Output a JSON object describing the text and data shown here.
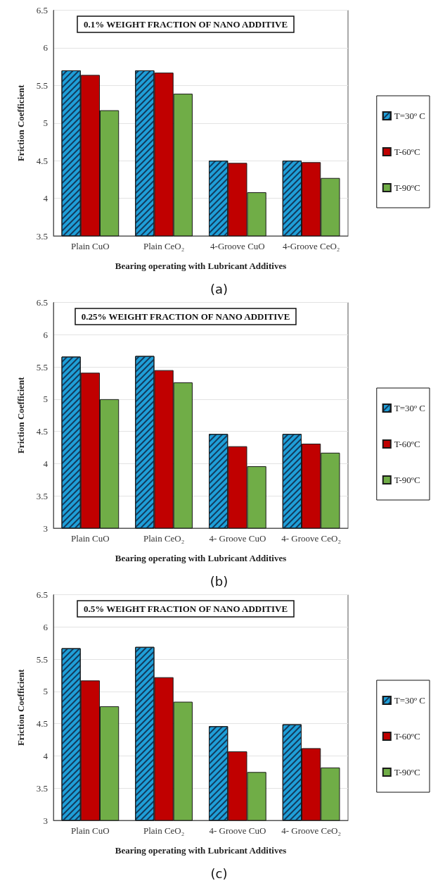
{
  "chart_data": [
    {
      "type": "bar",
      "title": "0.1% WEIGHT FRACTION OF NANO ADDITIVE",
      "xlabel": "Bearing operating with Lubricant Additives",
      "ylabel": "Friction Coefficient",
      "annotations": [
        "(a)"
      ],
      "categories": [
        "Plain CuO",
        "Plain CeO₂",
        "4-Groove CuO",
        "4-Groove CeO₂"
      ],
      "series": [
        {
          "name": "T=30º C",
          "color": "#1f9fd8",
          "values": [
            5.7,
            5.7,
            4.5,
            4.5
          ]
        },
        {
          "name": "T-60ºC",
          "color": "#c00000",
          "values": [
            5.64,
            5.67,
            4.47,
            4.48
          ]
        },
        {
          "name": "T-90ºC",
          "color": "#70ad47",
          "values": [
            5.17,
            5.39,
            4.08,
            4.27
          ]
        }
      ],
      "ylim": [
        3.5,
        6.5
      ],
      "yticks": [
        3.5,
        4,
        4.5,
        5,
        5.5,
        6,
        6.5
      ],
      "grid": "y",
      "legend": "right"
    },
    {
      "type": "bar",
      "title": "0.25% WEIGHT FRACTION OF NANO ADDITIVE",
      "xlabel": "Bearing operating with Lubricant Additives",
      "ylabel": "Friction Coefficient",
      "annotations": [
        "(b)"
      ],
      "categories": [
        "Plain CuO",
        "Plain CeO₂",
        "4- Groove CuO",
        "4- Groove CeO₂"
      ],
      "series": [
        {
          "name": "T=30º C",
          "color": "#1f9fd8",
          "values": [
            5.66,
            5.67,
            4.46,
            4.46
          ]
        },
        {
          "name": "T-60ºC",
          "color": "#c00000",
          "values": [
            5.41,
            5.45,
            4.27,
            4.31
          ]
        },
        {
          "name": "T-90ºC",
          "color": "#70ad47",
          "values": [
            5.0,
            5.26,
            3.96,
            4.17
          ]
        }
      ],
      "ylim": [
        3,
        6.5
      ],
      "yticks": [
        3,
        3.5,
        4,
        4.5,
        5,
        5.5,
        6,
        6.5
      ],
      "grid": "y",
      "legend": "right"
    },
    {
      "type": "bar",
      "title": "0.5% WEIGHT FRACTION OF NANO ADDITIVE",
      "xlabel": "Bearing operating with Lubricant Additives",
      "ylabel": "Friction Coefficient",
      "annotations": [
        "(c)"
      ],
      "categories": [
        "Plain CuO",
        "Plain CeO₂",
        "4- Groove CuO",
        "4- Groove CeO₂"
      ],
      "series": [
        {
          "name": "T=30º C",
          "color": "#1f9fd8",
          "values": [
            5.67,
            5.69,
            4.46,
            4.49
          ]
        },
        {
          "name": "T-60ºC",
          "color": "#c00000",
          "values": [
            5.17,
            5.22,
            4.07,
            4.12
          ]
        },
        {
          "name": "T-90ºC",
          "color": "#70ad47",
          "values": [
            4.77,
            4.84,
            3.75,
            3.82
          ]
        }
      ],
      "ylim": [
        3,
        6.5
      ],
      "yticks": [
        3,
        3.5,
        4,
        4.5,
        5,
        5.5,
        6,
        6.5
      ],
      "grid": "y",
      "legend": "right"
    }
  ]
}
